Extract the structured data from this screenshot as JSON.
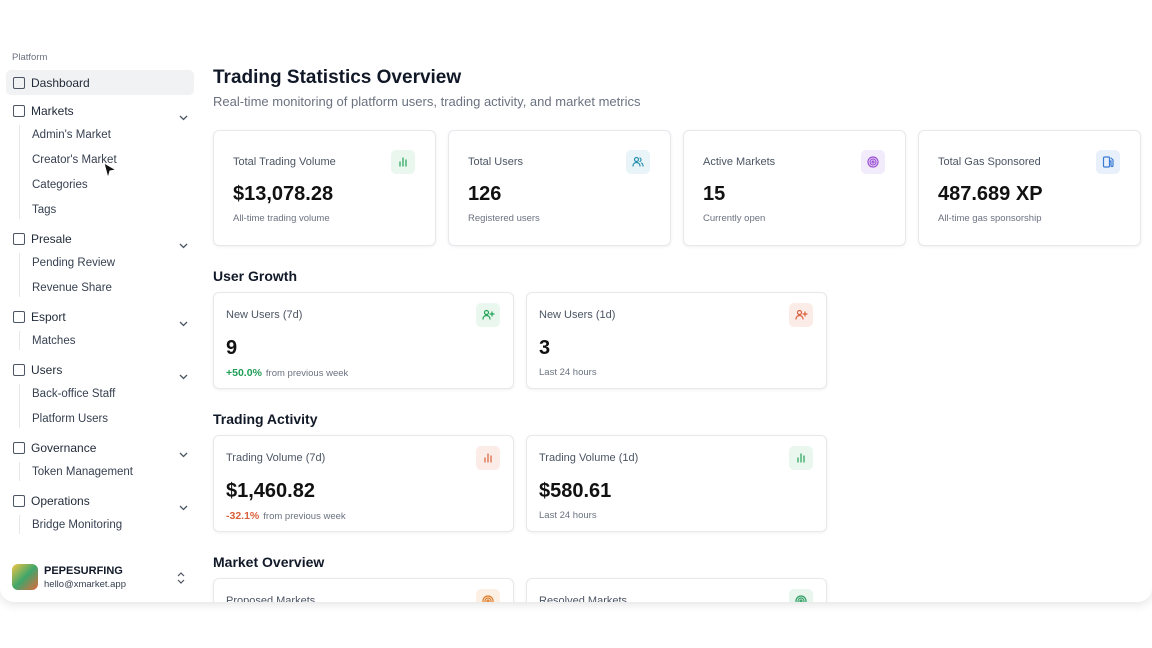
{
  "sidebar": {
    "section": "Platform",
    "items": [
      {
        "label": "Dashboard"
      },
      {
        "label": "Markets",
        "children": [
          "Admin's Market",
          "Creator's Market",
          "Categories",
          "Tags"
        ]
      },
      {
        "label": "Presale",
        "children": [
          "Pending Review",
          "Revenue Share"
        ]
      },
      {
        "label": "Esport",
        "children": [
          "Matches"
        ]
      },
      {
        "label": "Users",
        "children": [
          "Back-office Staff",
          "Platform Users"
        ]
      },
      {
        "label": "Governance",
        "children": [
          "Token Management"
        ]
      },
      {
        "label": "Operations",
        "children": [
          "Bridge Monitoring"
        ]
      }
    ],
    "user": {
      "name": "PEPESURFING",
      "email": "hello@xmarket.app"
    }
  },
  "header": {
    "title": "Trading Statistics Overview",
    "subtitle": "Real-time monitoring of platform users, trading activity, and market metrics"
  },
  "stats": [
    {
      "label": "Total Trading Volume",
      "value": "$13,078.28",
      "note": "All-time trading volume"
    },
    {
      "label": "Total Users",
      "value": "126",
      "note": "Registered users"
    },
    {
      "label": "Active Markets",
      "value": "15",
      "note": "Currently open"
    },
    {
      "label": "Total Gas Sponsored",
      "value": "487.689 XP",
      "note": "All-time gas sponsorship"
    }
  ],
  "sections": [
    {
      "title": "User Growth",
      "cards": [
        {
          "label": "New Users (7d)",
          "value": "9",
          "change": "+50.0%",
          "note": "from previous week"
        },
        {
          "label": "New Users (1d)",
          "value": "3",
          "note": "Last 24 hours"
        }
      ]
    },
    {
      "title": "Trading Activity",
      "cards": [
        {
          "label": "Trading Volume (7d)",
          "value": "$1,460.82",
          "change": "-32.1%",
          "note": "from previous week"
        },
        {
          "label": "Trading Volume (1d)",
          "value": "$580.61",
          "note": "Last 24 hours"
        }
      ]
    },
    {
      "title": "Market Overview",
      "cards": [
        {
          "label": "Proposed Markets"
        },
        {
          "label": "Resolved Markets"
        }
      ]
    }
  ]
}
